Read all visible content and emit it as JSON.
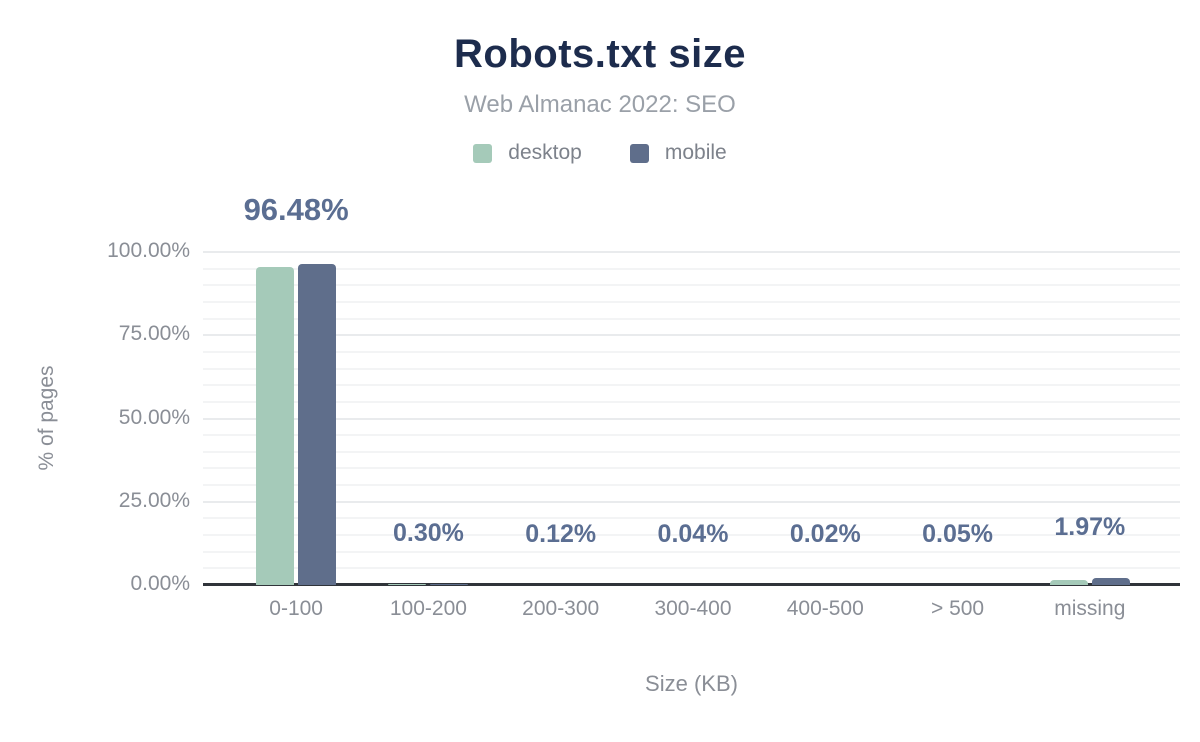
{
  "figure": {
    "title": "Robots.txt size",
    "subtitle": "Web Almanac 2022: SEO"
  },
  "legend": {
    "items": [
      {
        "label": "desktop",
        "color": "#a5cab9"
      },
      {
        "label": "mobile",
        "color": "#5f6e8b"
      }
    ]
  },
  "axes": {
    "x_title": "Size (KB)",
    "y_title": "% of pages"
  },
  "chart_data": {
    "type": "bar",
    "title": "Robots.txt size",
    "subtitle": "Web Almanac 2022: SEO",
    "xlabel": "Size (KB)",
    "ylabel": "% of pages",
    "categories": [
      "0-100",
      "100-200",
      "200-300",
      "300-400",
      "400-500",
      "> 500",
      "missing"
    ],
    "series": [
      {
        "name": "desktop",
        "color": "#a5cab9",
        "values": [
          95.5,
          0.3,
          0.12,
          0.04,
          0.02,
          0.05,
          1.5
        ]
      },
      {
        "name": "mobile",
        "color": "#5f6e8b",
        "values": [
          96.48,
          0.3,
          0.12,
          0.04,
          0.02,
          0.05,
          1.97
        ]
      }
    ],
    "data_labels": [
      "96.48%",
      "0.30%",
      "0.12%",
      "0.04%",
      "0.02%",
      "0.05%",
      "1.97%"
    ],
    "y_ticks": [
      {
        "value": 100,
        "label": "100.00%"
      },
      {
        "value": 75,
        "label": "75.00%"
      },
      {
        "value": 50,
        "label": "50.00%"
      },
      {
        "value": 25,
        "label": "25.00%"
      },
      {
        "value": 0,
        "label": "0.00%"
      }
    ],
    "ylim": [
      0,
      100
    ],
    "grid": {
      "minor_interval": 5,
      "major_interval": 25,
      "orientation": "horizontal"
    },
    "legend_position": "top"
  },
  "colors": {
    "title": "#1d2c4d",
    "subtitle": "#9aa0a8",
    "axis_text": "#8a8e96",
    "data_label": "#5b6e92",
    "axis_line": "#30343a",
    "grid_major": "#e9ebed",
    "grid_minor": "#f3f4f5",
    "desktop_bar": "#a5cab9",
    "mobile_bar": "#5f6e8b"
  }
}
